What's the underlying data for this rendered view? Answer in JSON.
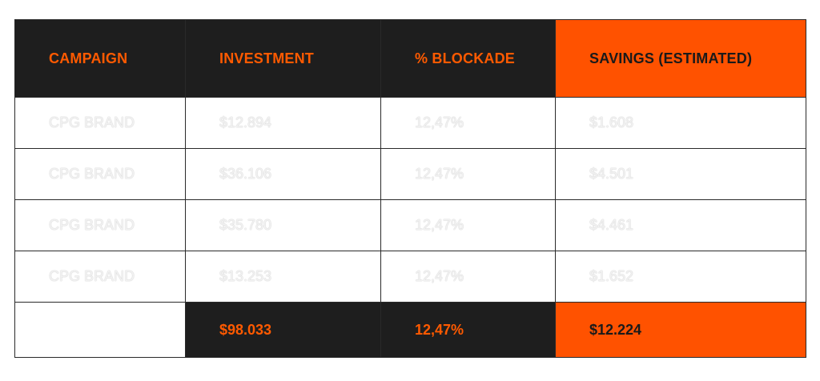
{
  "table": {
    "headers": [
      "CAMPAIGN",
      "INVESTMENT",
      "% BLOCKADE",
      "SAVINGS (ESTIMATED)"
    ],
    "rows": [
      [
        "CPG BRAND",
        "$12.894",
        "12,47%",
        "$1.608"
      ],
      [
        "CPG BRAND",
        "$36.106",
        "12,47%",
        "$4.501"
      ],
      [
        "CPG BRAND",
        "$35.780",
        "12,47%",
        "$4.461"
      ],
      [
        "CPG BRAND",
        "$13.253",
        "12,47%",
        "$1.652"
      ]
    ],
    "totals": [
      "",
      "$98.033",
      "12,47%",
      "$12.224"
    ]
  },
  "colors": {
    "accent": "#ff5200",
    "dark": "#1e1e1e",
    "accent_text": "#ff5a00"
  }
}
